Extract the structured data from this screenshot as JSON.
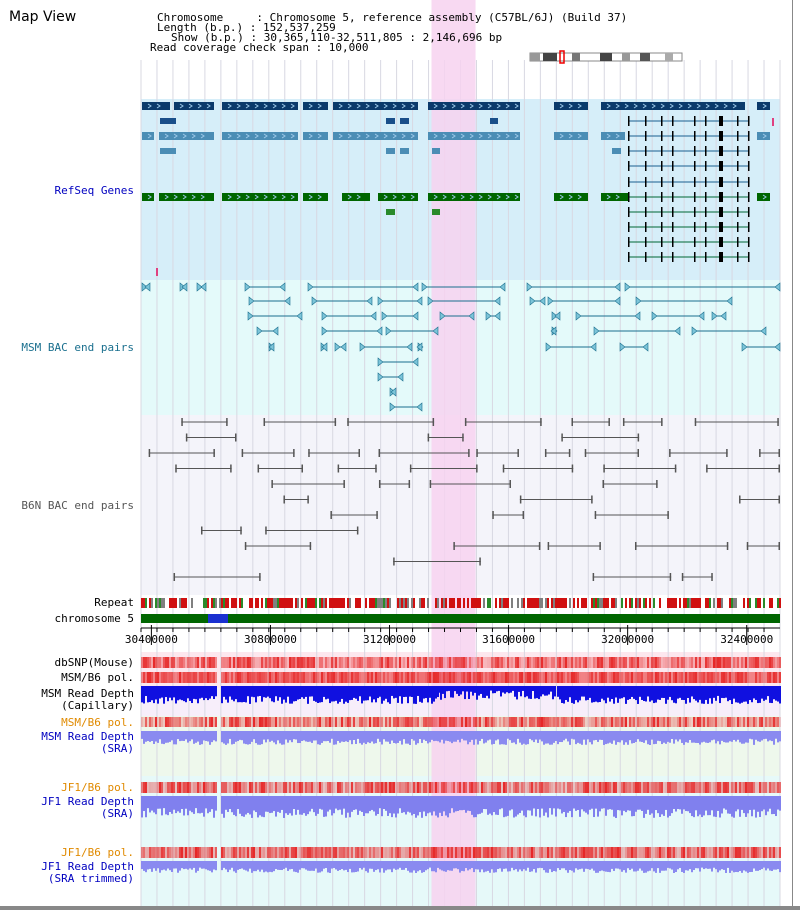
{
  "title": "Map View",
  "info": {
    "chromosome_line": "Chromosome     : Chromosome 5, reference assembly (C57BL/6J) (Build 37)",
    "length_line": "Length (b.p.) : 152,537,259",
    "show_line": "Show (b.p.) : 30,365,110-32,511,805 : 2,146,696 bp",
    "coverage_line": "Read coverage check span : 10,000"
  },
  "axis": {
    "start": 30365110,
    "end": 32511805,
    "ticks": [
      "30400000",
      "30800000",
      "31200000",
      "31600000",
      "32000000",
      "32400000"
    ]
  },
  "highlight": {
    "start": 31341000,
    "end": 31489000,
    "color": "#f7d2f0"
  },
  "tracks": {
    "refseq": {
      "label": "RefSeq Genes",
      "color": "#0000c0"
    },
    "msm_bac": {
      "label": "MSM BAC end pairs",
      "color": "#1a6f8e"
    },
    "b6n_bac": {
      "label": "B6N BAC end pairs",
      "color": "#555555"
    },
    "repeat": {
      "label": "Repeat",
      "color": "#000000"
    },
    "chromosome": {
      "label": "chromosome 5",
      "color": "#000000"
    },
    "dbsnp": {
      "label": "dbSNP(Mouse)",
      "color": "#000000"
    },
    "msm_b6_pol": {
      "label": "MSM/B6 pol.",
      "color": "#000000"
    },
    "msm_depth_cap": {
      "label": "MSM Read Depth\n(Capillary)",
      "color": "#000000"
    },
    "msm_b6_pol2": {
      "label": "MSM/B6 pol.",
      "color": "#e08a00"
    },
    "msm_depth_sra": {
      "label": "MSM Read Depth\n(SRA)",
      "color": "#0000c0"
    },
    "jf1_b6_pol": {
      "label": "JF1/B6 pol.",
      "color": "#e08a00"
    },
    "jf1_depth_sra": {
      "label": "JF1 Read Depth\n(SRA)",
      "color": "#0000c0"
    },
    "jf1_b6_pol2": {
      "label": "JF1/B6 pol.",
      "color": "#e08a00"
    },
    "jf1_depth_trim": {
      "label": "JF1 Read Depth\n(SRA trimmed)",
      "color": "#0000c0"
    }
  }
}
